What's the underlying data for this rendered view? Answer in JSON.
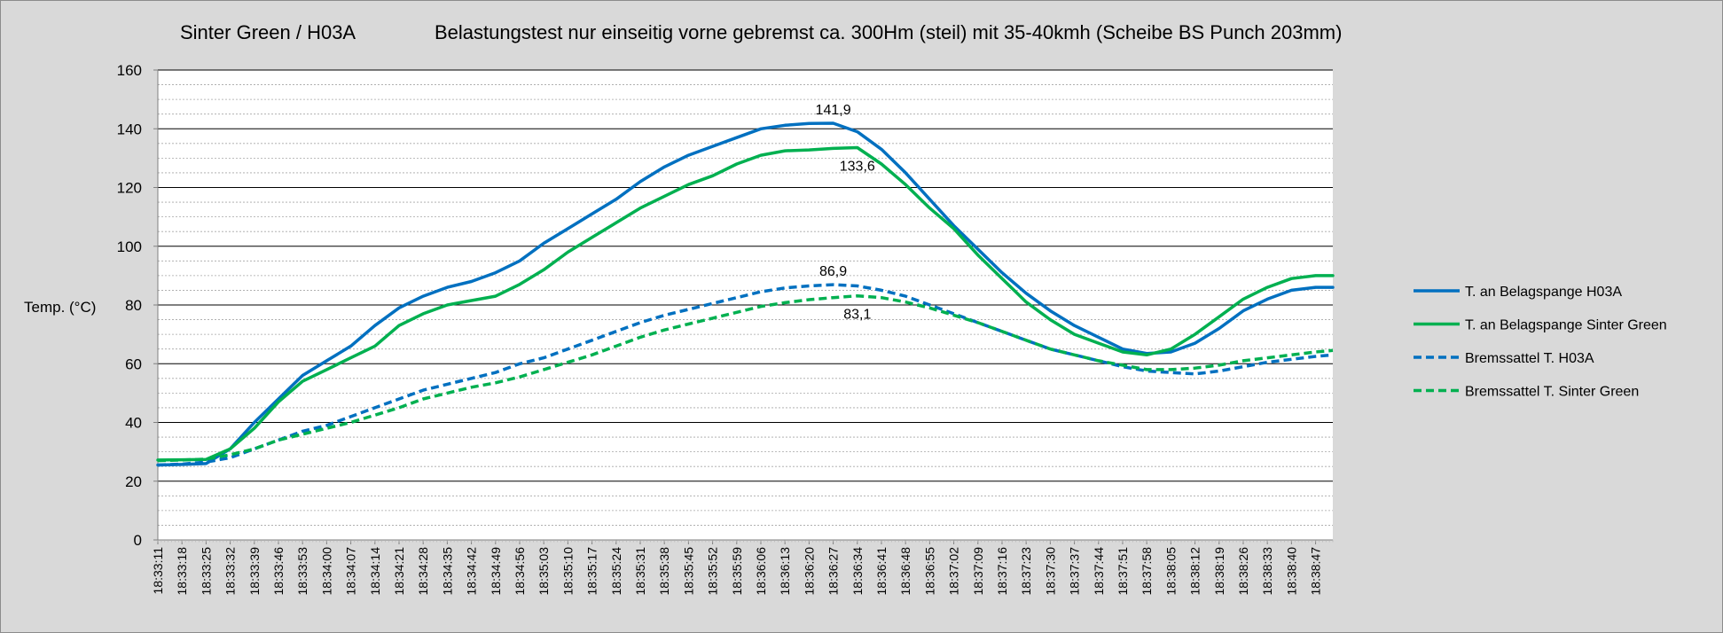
{
  "chart_data": {
    "type": "line",
    "title_left": "Sinter Green / H03A",
    "title_right": "Belastungstest nur einseitig vorne gebremst ca. 300Hm (steil) mit 35-40kmh (Scheibe BS Punch 203mm)",
    "ylabel": "Temp. (°C)",
    "ylim": [
      0,
      160
    ],
    "yticks": [
      0,
      20,
      40,
      60,
      80,
      100,
      120,
      140,
      160
    ],
    "grid": "major and minor horizontal",
    "legend_position": "right",
    "x_ticks": [
      "18:33:11",
      "18:33:18",
      "18:33:25",
      "18:33:32",
      "18:33:39",
      "18:33:46",
      "18:33:53",
      "18:34:00",
      "18:34:07",
      "18:34:14",
      "18:34:21",
      "18:34:28",
      "18:34:35",
      "18:34:42",
      "18:34:49",
      "18:34:56",
      "18:35:03",
      "18:35:10",
      "18:35:17",
      "18:35:24",
      "18:35:31",
      "18:35:38",
      "18:35:45",
      "18:35:52",
      "18:35:59",
      "18:36:06",
      "18:36:13",
      "18:36:20",
      "18:36:27",
      "18:36:34",
      "18:36:41",
      "18:36:48",
      "18:36:55",
      "18:37:02",
      "18:37:09",
      "18:37:16",
      "18:37:23",
      "18:37:30",
      "18:37:37",
      "18:37:44",
      "18:37:51",
      "18:37:58",
      "18:38:05",
      "18:38:12",
      "18:38:19",
      "18:38:26",
      "18:38:33",
      "18:38:40",
      "18:38:47"
    ],
    "x_end_value": "18:38:52",
    "series": [
      {
        "name": "T. an Belagspange H03A",
        "color": "#0070c0",
        "dash": "solid",
        "points": [
          [
            "18:33:11",
            25.5
          ],
          [
            "18:33:18",
            25.7
          ],
          [
            "18:33:25",
            26.0
          ],
          [
            "18:33:32",
            31
          ],
          [
            "18:33:39",
            40
          ],
          [
            "18:33:46",
            48
          ],
          [
            "18:33:53",
            56
          ],
          [
            "18:34:00",
            61
          ],
          [
            "18:34:07",
            66
          ],
          [
            "18:34:14",
            73
          ],
          [
            "18:34:21",
            79
          ],
          [
            "18:34:28",
            83
          ],
          [
            "18:34:35",
            86
          ],
          [
            "18:34:42",
            88
          ],
          [
            "18:34:49",
            91
          ],
          [
            "18:34:56",
            95
          ],
          [
            "18:35:03",
            101
          ],
          [
            "18:35:10",
            106
          ],
          [
            "18:35:17",
            111
          ],
          [
            "18:35:24",
            116
          ],
          [
            "18:35:31",
            122
          ],
          [
            "18:35:38",
            127
          ],
          [
            "18:35:45",
            131
          ],
          [
            "18:35:52",
            134
          ],
          [
            "18:35:59",
            137
          ],
          [
            "18:36:06",
            140
          ],
          [
            "18:36:13",
            141.2
          ],
          [
            "18:36:20",
            141.8
          ],
          [
            "18:36:27",
            141.9
          ],
          [
            "18:36:34",
            139
          ],
          [
            "18:36:41",
            133
          ],
          [
            "18:36:48",
            125
          ],
          [
            "18:36:55",
            116
          ],
          [
            "18:37:02",
            107
          ],
          [
            "18:37:09",
            99
          ],
          [
            "18:37:16",
            91
          ],
          [
            "18:37:23",
            84
          ],
          [
            "18:37:30",
            78
          ],
          [
            "18:37:37",
            73
          ],
          [
            "18:37:44",
            69
          ],
          [
            "18:37:51",
            65
          ],
          [
            "18:37:58",
            63.5
          ],
          [
            "18:38:05",
            64
          ],
          [
            "18:38:12",
            67
          ],
          [
            "18:38:19",
            72
          ],
          [
            "18:38:26",
            78
          ],
          [
            "18:38:33",
            82
          ],
          [
            "18:38:40",
            85
          ],
          [
            "18:38:47",
            86
          ],
          [
            "18:38:52",
            86
          ]
        ]
      },
      {
        "name": "T. an Belagspange Sinter Green",
        "color": "#00b050",
        "dash": "solid",
        "points": [
          [
            "18:33:11",
            27.2
          ],
          [
            "18:33:18",
            27.3
          ],
          [
            "18:33:25",
            27.4
          ],
          [
            "18:33:32",
            31
          ],
          [
            "18:33:39",
            38
          ],
          [
            "18:33:46",
            47
          ],
          [
            "18:33:53",
            54
          ],
          [
            "18:34:00",
            58
          ],
          [
            "18:34:07",
            62
          ],
          [
            "18:34:14",
            66
          ],
          [
            "18:34:21",
            73
          ],
          [
            "18:34:28",
            77
          ],
          [
            "18:34:35",
            80
          ],
          [
            "18:34:42",
            81.5
          ],
          [
            "18:34:49",
            83
          ],
          [
            "18:34:56",
            87
          ],
          [
            "18:35:03",
            92
          ],
          [
            "18:35:10",
            98
          ],
          [
            "18:35:17",
            103
          ],
          [
            "18:35:24",
            108
          ],
          [
            "18:35:31",
            113
          ],
          [
            "18:35:38",
            117
          ],
          [
            "18:35:45",
            121
          ],
          [
            "18:35:52",
            124
          ],
          [
            "18:35:59",
            128
          ],
          [
            "18:36:06",
            131
          ],
          [
            "18:36:13",
            132.5
          ],
          [
            "18:36:20",
            132.8
          ],
          [
            "18:36:27",
            133.3
          ],
          [
            "18:36:34",
            133.6
          ],
          [
            "18:36:41",
            128
          ],
          [
            "18:36:48",
            121
          ],
          [
            "18:36:55",
            113
          ],
          [
            "18:37:02",
            106
          ],
          [
            "18:37:09",
            97
          ],
          [
            "18:37:16",
            89
          ],
          [
            "18:37:23",
            81
          ],
          [
            "18:37:30",
            75
          ],
          [
            "18:37:37",
            70
          ],
          [
            "18:37:44",
            67
          ],
          [
            "18:37:51",
            64
          ],
          [
            "18:37:58",
            63
          ],
          [
            "18:38:05",
            65
          ],
          [
            "18:38:12",
            70
          ],
          [
            "18:38:19",
            76
          ],
          [
            "18:38:26",
            82
          ],
          [
            "18:38:33",
            86
          ],
          [
            "18:38:40",
            89
          ],
          [
            "18:38:47",
            90
          ],
          [
            "18:38:52",
            90
          ]
        ]
      },
      {
        "name": "Bremssattel T. H03A",
        "color": "#0070c0",
        "dash": "dashed",
        "points": [
          [
            "18:33:11",
            25.5
          ],
          [
            "18:33:18",
            25.8
          ],
          [
            "18:33:25",
            26.5
          ],
          [
            "18:33:32",
            28
          ],
          [
            "18:33:39",
            31
          ],
          [
            "18:33:46",
            34
          ],
          [
            "18:33:53",
            37
          ],
          [
            "18:34:00",
            39
          ],
          [
            "18:34:07",
            42
          ],
          [
            "18:34:14",
            45
          ],
          [
            "18:34:21",
            48
          ],
          [
            "18:34:28",
            51
          ],
          [
            "18:34:35",
            53
          ],
          [
            "18:34:42",
            55
          ],
          [
            "18:34:49",
            57
          ],
          [
            "18:34:56",
            60
          ],
          [
            "18:35:03",
            62
          ],
          [
            "18:35:10",
            65
          ],
          [
            "18:35:17",
            68
          ],
          [
            "18:35:24",
            71
          ],
          [
            "18:35:31",
            74
          ],
          [
            "18:35:38",
            76.5
          ],
          [
            "18:35:45",
            78.5
          ],
          [
            "18:35:52",
            80.5
          ],
          [
            "18:35:59",
            82.5
          ],
          [
            "18:36:06",
            84.5
          ],
          [
            "18:36:13",
            85.8
          ],
          [
            "18:36:20",
            86.5
          ],
          [
            "18:36:27",
            86.9
          ],
          [
            "18:36:34",
            86.5
          ],
          [
            "18:36:41",
            85
          ],
          [
            "18:36:48",
            83
          ],
          [
            "18:36:55",
            80
          ],
          [
            "18:37:02",
            77
          ],
          [
            "18:37:09",
            74
          ],
          [
            "18:37:16",
            71
          ],
          [
            "18:37:23",
            68
          ],
          [
            "18:37:30",
            65
          ],
          [
            "18:37:37",
            63
          ],
          [
            "18:37:44",
            61
          ],
          [
            "18:37:51",
            59
          ],
          [
            "18:37:58",
            57.5
          ],
          [
            "18:38:05",
            57
          ],
          [
            "18:38:12",
            56.5
          ],
          [
            "18:38:19",
            57.5
          ],
          [
            "18:38:26",
            59
          ],
          [
            "18:38:33",
            60.5
          ],
          [
            "18:38:40",
            61.5
          ],
          [
            "18:38:47",
            62.5
          ],
          [
            "18:38:52",
            63
          ]
        ]
      },
      {
        "name": "Bremssattel T. Sinter Green",
        "color": "#00b050",
        "dash": "dashed",
        "points": [
          [
            "18:33:11",
            27
          ],
          [
            "18:33:18",
            27.2
          ],
          [
            "18:33:25",
            27.5
          ],
          [
            "18:33:32",
            29
          ],
          [
            "18:33:39",
            31
          ],
          [
            "18:33:46",
            34
          ],
          [
            "18:33:53",
            36
          ],
          [
            "18:34:00",
            38
          ],
          [
            "18:34:07",
            40
          ],
          [
            "18:34:14",
            42.5
          ],
          [
            "18:34:21",
            45
          ],
          [
            "18:34:28",
            48
          ],
          [
            "18:34:35",
            50
          ],
          [
            "18:34:42",
            52
          ],
          [
            "18:34:49",
            53.5
          ],
          [
            "18:34:56",
            55.5
          ],
          [
            "18:35:03",
            58
          ],
          [
            "18:35:10",
            60.5
          ],
          [
            "18:35:17",
            63
          ],
          [
            "18:35:24",
            66
          ],
          [
            "18:35:31",
            69
          ],
          [
            "18:35:38",
            71.5
          ],
          [
            "18:35:45",
            73.5
          ],
          [
            "18:35:52",
            75.5
          ],
          [
            "18:35:59",
            77.5
          ],
          [
            "18:36:06",
            79.5
          ],
          [
            "18:36:13",
            80.8
          ],
          [
            "18:36:20",
            81.8
          ],
          [
            "18:36:27",
            82.5
          ],
          [
            "18:36:34",
            83.1
          ],
          [
            "18:36:41",
            82.5
          ],
          [
            "18:36:48",
            81
          ],
          [
            "18:36:55",
            79
          ],
          [
            "18:37:02",
            76.5
          ],
          [
            "18:37:09",
            74
          ],
          [
            "18:37:16",
            71
          ],
          [
            "18:37:23",
            68
          ],
          [
            "18:37:30",
            65
          ],
          [
            "18:37:37",
            63
          ],
          [
            "18:37:44",
            61
          ],
          [
            "18:37:51",
            59.5
          ],
          [
            "18:37:58",
            58
          ],
          [
            "18:38:05",
            58
          ],
          [
            "18:38:12",
            58.5
          ],
          [
            "18:38:19",
            59.5
          ],
          [
            "18:38:26",
            61
          ],
          [
            "18:38:33",
            62
          ],
          [
            "18:38:40",
            63
          ],
          [
            "18:38:47",
            64
          ],
          [
            "18:38:52",
            64.5
          ]
        ]
      }
    ],
    "annotations": [
      {
        "text": "141,9",
        "x": "18:36:27",
        "y": 141.9,
        "placement": "above"
      },
      {
        "text": "133,6",
        "x": "18:36:34",
        "y": 133.6,
        "placement": "below"
      },
      {
        "text": "86,9",
        "x": "18:36:27",
        "y": 86.9,
        "placement": "above"
      },
      {
        "text": "83,1",
        "x": "18:36:34",
        "y": 83.1,
        "placement": "below"
      }
    ]
  }
}
